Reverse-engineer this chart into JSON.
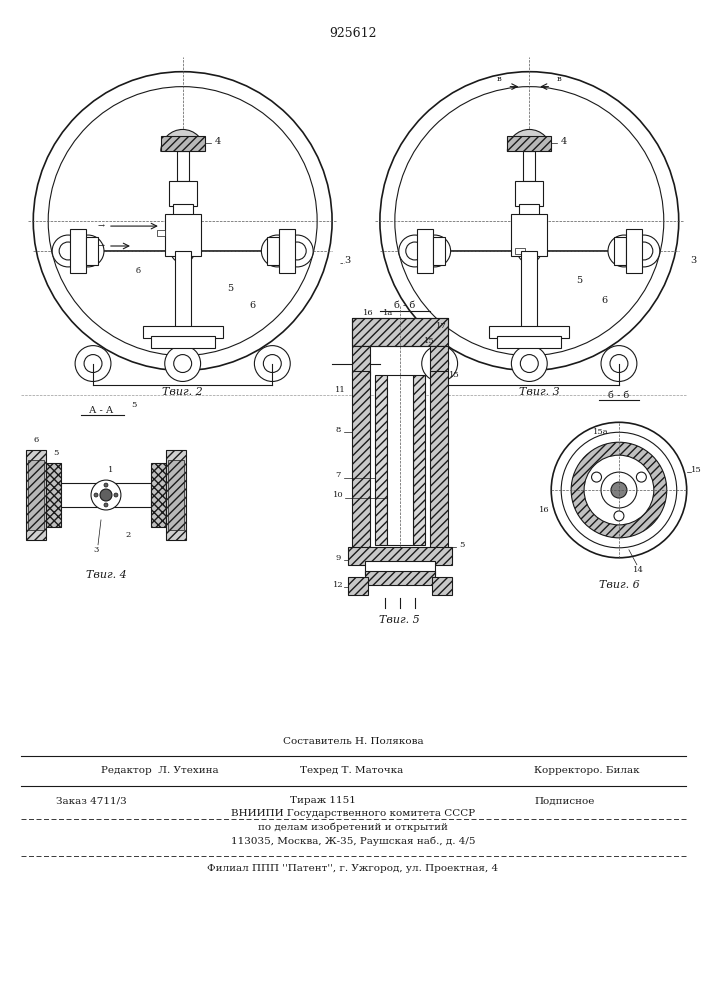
{
  "patent_number": "925612",
  "bg_color": "#ffffff",
  "line_color": "#1a1a1a",
  "fig2_label": "Τвиг. 2",
  "fig3_label": "Τвиг. 3",
  "fig4_label": "Τвиг. 4",
  "fig5_label": "Τвиг. 5",
  "fig6_label": "Τвиг. 6",
  "footer_line1": "Составитель Н. Полякова",
  "footer_line2_left": "Редактор  Л. Утехина",
  "footer_line2_mid": "Техред Т. Маточка",
  "footer_line2_right": "Корректоро. Билак",
  "footer_line3_left": "Заказ 4711/3",
  "footer_line3_mid": "Тираж 1151",
  "footer_line3_right": "Подписное",
  "footer_line4": "ВНИИПИ Государственного комитета СССР",
  "footer_line5": "по делам изобретений и открытий",
  "footer_line6": "113035, Москва, Ж-35, Раушская наб., д. 4/5",
  "footer_line7": "Филиал ППП ''Патент'', г. Ужгород, ул. Проектная, 4"
}
